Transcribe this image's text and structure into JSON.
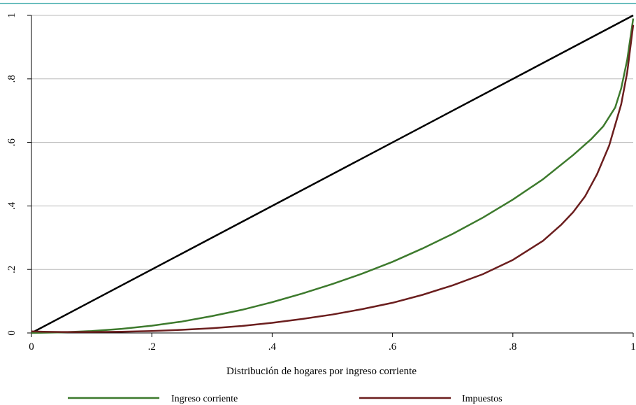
{
  "chart_data": {
    "type": "line",
    "title": "",
    "xlabel": "Distribución de hogares por ingreso corriente",
    "ylabel": "",
    "xlim": [
      0,
      1
    ],
    "ylim": [
      0,
      1
    ],
    "grid": true,
    "legend_position": "bottom",
    "x_ticks": [
      {
        "value": 0,
        "label": "0"
      },
      {
        "value": 0.2,
        "label": ".2"
      },
      {
        "value": 0.4,
        "label": ".4"
      },
      {
        "value": 0.6,
        "label": ".6"
      },
      {
        "value": 0.8,
        "label": ".8"
      },
      {
        "value": 1,
        "label": "1"
      }
    ],
    "y_ticks": [
      {
        "value": 0,
        "label": "0"
      },
      {
        "value": 0.2,
        "label": ".2"
      },
      {
        "value": 0.4,
        "label": ".4"
      },
      {
        "value": 0.6,
        "label": ".6"
      },
      {
        "value": 0.8,
        "label": ".8"
      },
      {
        "value": 1,
        "label": "1"
      }
    ],
    "series": [
      {
        "name": "",
        "color": "#000000",
        "in_legend": false,
        "x": [
          0,
          1
        ],
        "y": [
          0,
          1
        ]
      },
      {
        "name": "Ingreso corriente",
        "color": "#3d7a2d",
        "in_legend": true,
        "x": [
          0,
          0.05,
          0.1,
          0.15,
          0.2,
          0.25,
          0.3,
          0.35,
          0.4,
          0.45,
          0.5,
          0.55,
          0.6,
          0.65,
          0.7,
          0.75,
          0.8,
          0.85,
          0.9,
          0.93,
          0.95,
          0.97,
          0.98,
          0.99,
          1
        ],
        "y": [
          0,
          0.002,
          0.006,
          0.013,
          0.023,
          0.036,
          0.053,
          0.073,
          0.097,
          0.124,
          0.154,
          0.187,
          0.224,
          0.266,
          0.312,
          0.363,
          0.42,
          0.484,
          0.56,
          0.61,
          0.65,
          0.71,
          0.77,
          0.86,
          0.99
        ]
      },
      {
        "name": "Impuestos",
        "color": "#6b1e1e",
        "in_legend": true,
        "x": [
          0,
          0.02,
          0.05,
          0.1,
          0.15,
          0.2,
          0.25,
          0.3,
          0.35,
          0.4,
          0.45,
          0.5,
          0.55,
          0.6,
          0.65,
          0.7,
          0.75,
          0.8,
          0.85,
          0.88,
          0.9,
          0.92,
          0.94,
          0.96,
          0.98,
          0.99,
          1
        ],
        "y": [
          0.005,
          0.004,
          0.003,
          0.003,
          0.004,
          0.006,
          0.01,
          0.015,
          0.022,
          0.032,
          0.044,
          0.058,
          0.075,
          0.095,
          0.12,
          0.15,
          0.185,
          0.23,
          0.29,
          0.34,
          0.38,
          0.43,
          0.5,
          0.59,
          0.72,
          0.82,
          0.97
        ]
      }
    ]
  }
}
